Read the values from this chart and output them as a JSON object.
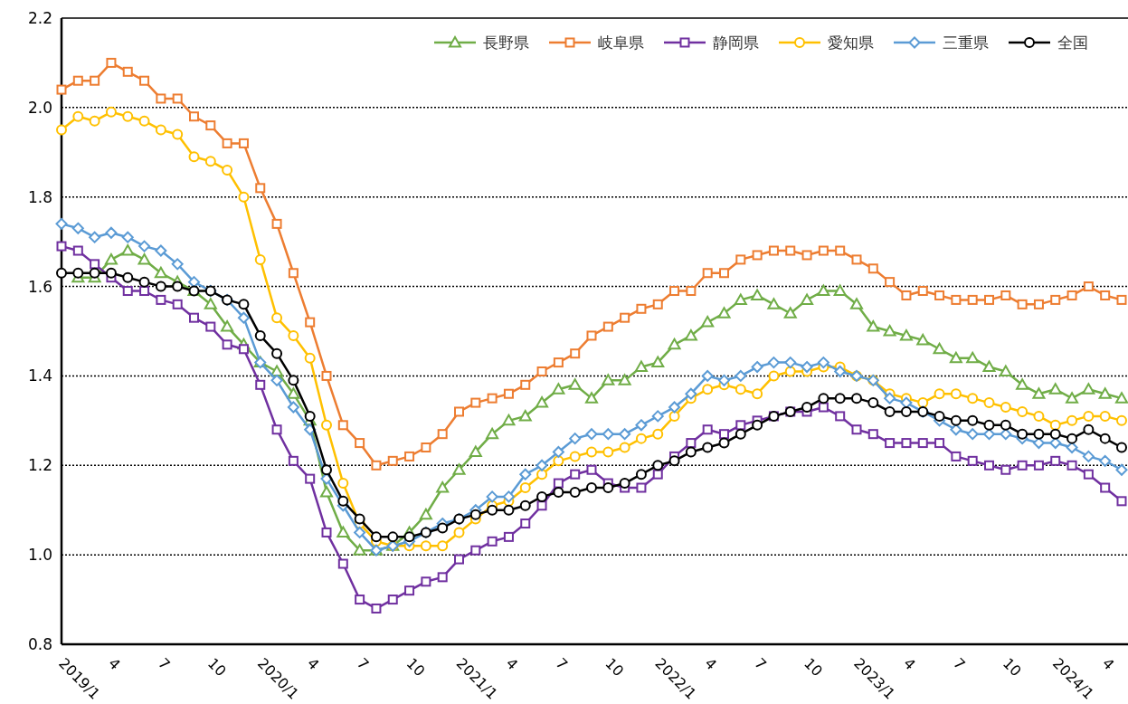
{
  "chart_data": {
    "type": "line",
    "categories": [
      "2019/1",
      null,
      null,
      "4",
      null,
      null,
      "7",
      null,
      null,
      "10",
      null,
      null,
      "2020/1",
      null,
      null,
      "4",
      null,
      null,
      "7",
      null,
      null,
      "10",
      null,
      null,
      "2021/1",
      null,
      null,
      "4",
      null,
      null,
      "7",
      null,
      null,
      "10",
      null,
      null,
      "2022/1",
      null,
      null,
      "4",
      null,
      null,
      "7",
      null,
      null,
      "10",
      null,
      null,
      "2023/1",
      null,
      null,
      "4",
      null,
      null,
      "7",
      null,
      null,
      "10",
      null,
      null,
      "2024/1",
      null,
      null,
      "4",
      null
    ],
    "ylim": [
      0.8,
      2.2
    ],
    "yticks": [
      {
        "value": 0.8,
        "label": "0.8"
      },
      {
        "value": 1.0,
        "label": "1.0"
      },
      {
        "value": 1.2,
        "label": "1.2"
      },
      {
        "value": 1.4,
        "label": "1.4"
      },
      {
        "value": 1.6,
        "label": "1.6"
      },
      {
        "value": 1.8,
        "label": "1.8"
      },
      {
        "value": 2.0,
        "label": "2.0"
      },
      {
        "value": 2.2,
        "label": "2.2"
      }
    ],
    "grid": "y",
    "legend": "top right",
    "line_style": "solid",
    "series": [
      {
        "name": "長野県",
        "color": "#70ad47",
        "marker": "triangle",
        "values": [
          null,
          1.62,
          1.62,
          1.66,
          1.68,
          1.66,
          1.63,
          1.61,
          1.59,
          1.56,
          1.51,
          1.47,
          1.43,
          1.41,
          1.36,
          1.3,
          1.14,
          1.05,
          1.01,
          1.01,
          1.02,
          1.05,
          1.09,
          1.15,
          1.19,
          1.23,
          1.27,
          1.3,
          1.31,
          1.34,
          1.37,
          1.38,
          1.35,
          1.39,
          1.39,
          1.42,
          1.43,
          1.47,
          1.49,
          1.52,
          1.54,
          1.57,
          1.58,
          1.56,
          1.54,
          1.57,
          1.59,
          1.59,
          1.56,
          1.51,
          1.5,
          1.49,
          1.48,
          1.46,
          1.44,
          1.44,
          1.42,
          1.41,
          1.38,
          1.36,
          1.37,
          1.35,
          1.37,
          1.36,
          1.35
        ]
      },
      {
        "name": "岐阜県",
        "color": "#ed7d31",
        "marker": "square",
        "values": [
          2.04,
          2.06,
          2.06,
          2.1,
          2.08,
          2.06,
          2.02,
          2.02,
          1.98,
          1.96,
          1.92,
          1.92,
          1.82,
          1.74,
          1.63,
          1.52,
          1.4,
          1.29,
          1.25,
          1.2,
          1.21,
          1.22,
          1.24,
          1.27,
          1.32,
          1.34,
          1.35,
          1.36,
          1.38,
          1.41,
          1.43,
          1.45,
          1.49,
          1.51,
          1.53,
          1.55,
          1.56,
          1.59,
          1.59,
          1.63,
          1.63,
          1.66,
          1.67,
          1.68,
          1.68,
          1.67,
          1.68,
          1.68,
          1.66,
          1.64,
          1.61,
          1.58,
          1.59,
          1.58,
          1.57,
          1.57,
          1.57,
          1.58,
          1.56,
          1.56,
          1.57,
          1.58,
          1.6,
          1.58,
          1.57
        ]
      },
      {
        "name": "静岡県",
        "color": "#7030a0",
        "marker": "square",
        "values": [
          1.69,
          1.68,
          1.65,
          1.62,
          1.59,
          1.59,
          1.57,
          1.56,
          1.53,
          1.51,
          1.47,
          1.46,
          1.38,
          1.28,
          1.21,
          1.17,
          1.05,
          0.98,
          0.9,
          0.88,
          0.9,
          0.92,
          0.94,
          0.95,
          0.99,
          1.01,
          1.03,
          1.04,
          1.07,
          1.11,
          1.16,
          1.18,
          1.19,
          1.16,
          1.15,
          1.15,
          1.18,
          1.22,
          1.25,
          1.28,
          1.27,
          1.29,
          1.3,
          1.31,
          1.32,
          1.32,
          1.33,
          1.31,
          1.28,
          1.27,
          1.25,
          1.25,
          1.25,
          1.25,
          1.22,
          1.21,
          1.2,
          1.19,
          1.2,
          1.2,
          1.21,
          1.2,
          1.18,
          1.15,
          1.12
        ]
      },
      {
        "name": "愛知県",
        "color": "#ffc000",
        "marker": "circle",
        "values": [
          1.95,
          1.98,
          1.97,
          1.99,
          1.98,
          1.97,
          1.95,
          1.94,
          1.89,
          1.88,
          1.86,
          1.8,
          1.66,
          1.53,
          1.49,
          1.44,
          1.29,
          1.16,
          1.07,
          1.03,
          1.02,
          1.02,
          1.02,
          1.02,
          1.05,
          1.08,
          1.11,
          1.12,
          1.15,
          1.18,
          1.21,
          1.22,
          1.23,
          1.23,
          1.24,
          1.26,
          1.27,
          1.31,
          1.35,
          1.37,
          1.38,
          1.37,
          1.36,
          1.4,
          1.41,
          1.41,
          1.42,
          1.42,
          1.4,
          1.39,
          1.36,
          1.35,
          1.34,
          1.36,
          1.36,
          1.35,
          1.34,
          1.33,
          1.32,
          1.31,
          1.29,
          1.3,
          1.31,
          1.31,
          1.3
        ]
      },
      {
        "name": "三重県",
        "color": "#5b9bd5",
        "marker": "diamond",
        "values": [
          1.74,
          1.73,
          1.71,
          1.72,
          1.71,
          1.69,
          1.68,
          1.65,
          1.61,
          1.59,
          1.57,
          1.53,
          1.43,
          1.39,
          1.33,
          1.28,
          1.17,
          1.11,
          1.05,
          1.01,
          1.02,
          1.03,
          1.05,
          1.07,
          1.08,
          1.1,
          1.13,
          1.13,
          1.18,
          1.2,
          1.23,
          1.26,
          1.27,
          1.27,
          1.27,
          1.29,
          1.31,
          1.33,
          1.36,
          1.4,
          1.39,
          1.4,
          1.42,
          1.43,
          1.43,
          1.42,
          1.43,
          1.41,
          1.4,
          1.39,
          1.35,
          1.34,
          1.32,
          1.3,
          1.28,
          1.27,
          1.27,
          1.27,
          1.26,
          1.25,
          1.25,
          1.24,
          1.22,
          1.21,
          1.19
        ]
      },
      {
        "name": "全国",
        "color": "#000000",
        "marker": "circle",
        "values": [
          1.63,
          1.63,
          1.63,
          1.63,
          1.62,
          1.61,
          1.6,
          1.6,
          1.59,
          1.59,
          1.57,
          1.56,
          1.49,
          1.45,
          1.39,
          1.31,
          1.19,
          1.12,
          1.08,
          1.04,
          1.04,
          1.04,
          1.05,
          1.06,
          1.08,
          1.09,
          1.1,
          1.1,
          1.11,
          1.13,
          1.14,
          1.14,
          1.15,
          1.15,
          1.16,
          1.18,
          1.2,
          1.21,
          1.23,
          1.24,
          1.25,
          1.27,
          1.29,
          1.31,
          1.32,
          1.33,
          1.35,
          1.35,
          1.35,
          1.34,
          1.32,
          1.32,
          1.32,
          1.31,
          1.3,
          1.3,
          1.29,
          1.29,
          1.27,
          1.27,
          1.27,
          1.26,
          1.28,
          1.26,
          1.24
        ]
      }
    ]
  }
}
